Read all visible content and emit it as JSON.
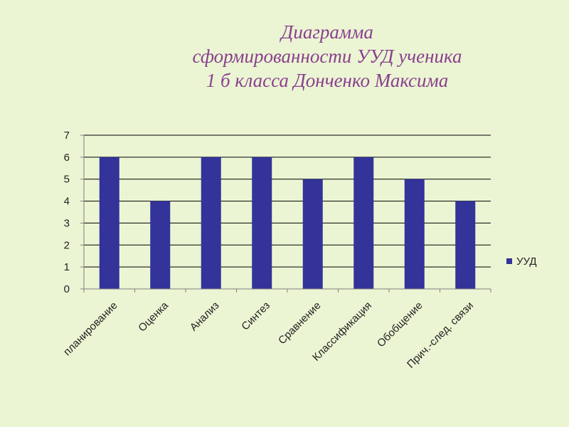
{
  "chart_data": {
    "type": "bar",
    "title_lines": [
      "Диаграмма",
      "сформированности УУД  ученика",
      "1 б класса  Донченко Максима"
    ],
    "categories": [
      "планирование",
      "Оценка",
      "Анализ",
      "Синтез",
      "Сравнение",
      "Классификация",
      "Обобщение",
      "Прич.-след. связи"
    ],
    "series": [
      {
        "name": "УУД",
        "values": [
          6,
          4,
          6,
          6,
          5,
          6,
          5,
          4
        ],
        "color": "#333399"
      }
    ],
    "ylim": [
      0,
      7
    ],
    "yticks": [
      0,
      1,
      2,
      3,
      4,
      5,
      6,
      7
    ],
    "grid": true,
    "legend_position": "right"
  },
  "colors": {
    "background": "#ebf5d3",
    "title": "#8a3f8f",
    "bar": "#333399",
    "gridline": "#000000"
  }
}
